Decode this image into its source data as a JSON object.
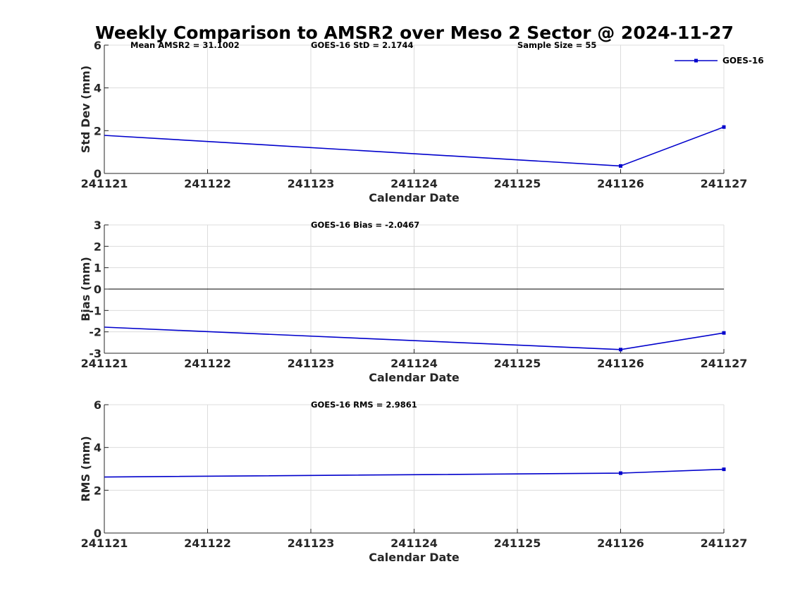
{
  "title": "Weekly Comparison to AMSR2 over Meso 2 Sector @ 2024-11-27",
  "colors": {
    "series": "#0000cc",
    "zero_line": "#000000",
    "grid": "#dcdcdc"
  },
  "legend": {
    "placement": "top-right",
    "entries": [
      "GOES-16"
    ]
  },
  "chart_data": [
    {
      "type": "line",
      "panel": "std",
      "ylabel": "Std Dev (mm)",
      "xlabel": "Calendar Date",
      "ylim": [
        0,
        6
      ],
      "yticks": [
        "0",
        "2",
        "4",
        "6"
      ],
      "x_tick_labels": [
        "241121",
        "241122",
        "241123",
        "241124",
        "241125",
        "241126",
        "241127"
      ],
      "grid": true,
      "annotations": [
        "Mean AMSR2 = 31.1002",
        "GOES-16 StD = 2.1744",
        "Sample Size = 55"
      ],
      "series": [
        {
          "name": "GOES-16",
          "x": [
            "241121",
            "241126",
            "241127"
          ],
          "values": [
            1.78,
            0.35,
            2.17
          ]
        }
      ]
    },
    {
      "type": "line",
      "panel": "bias",
      "ylabel": "Bias (mm)",
      "xlabel": "Calendar Date",
      "ylim": [
        -3,
        3
      ],
      "yticks": [
        "-3",
        "-2",
        "-1",
        "0",
        "1",
        "2",
        "3"
      ],
      "x_tick_labels": [
        "241121",
        "241122",
        "241123",
        "241124",
        "241125",
        "241126",
        "241127"
      ],
      "grid": true,
      "annotations": [
        "GOES-16 Bias  = -2.0467"
      ],
      "series": [
        {
          "name": "GOES-16",
          "x": [
            "241121",
            "241126",
            "241127"
          ],
          "values": [
            -1.78,
            -2.83,
            -2.05
          ]
        }
      ]
    },
    {
      "type": "line",
      "panel": "rms",
      "ylabel": "RMS (mm)",
      "xlabel": "Calendar Date",
      "ylim": [
        0,
        6
      ],
      "yticks": [
        "0",
        "2",
        "4",
        "6"
      ],
      "x_tick_labels": [
        "241121",
        "241122",
        "241123",
        "241124",
        "241125",
        "241126",
        "241127"
      ],
      "grid": true,
      "annotations": [
        "GOES-16 RMS = 2.9861"
      ],
      "series": [
        {
          "name": "GOES-16",
          "x": [
            "241121",
            "241126",
            "241127"
          ],
          "values": [
            2.62,
            2.8,
            2.98
          ]
        }
      ]
    }
  ]
}
